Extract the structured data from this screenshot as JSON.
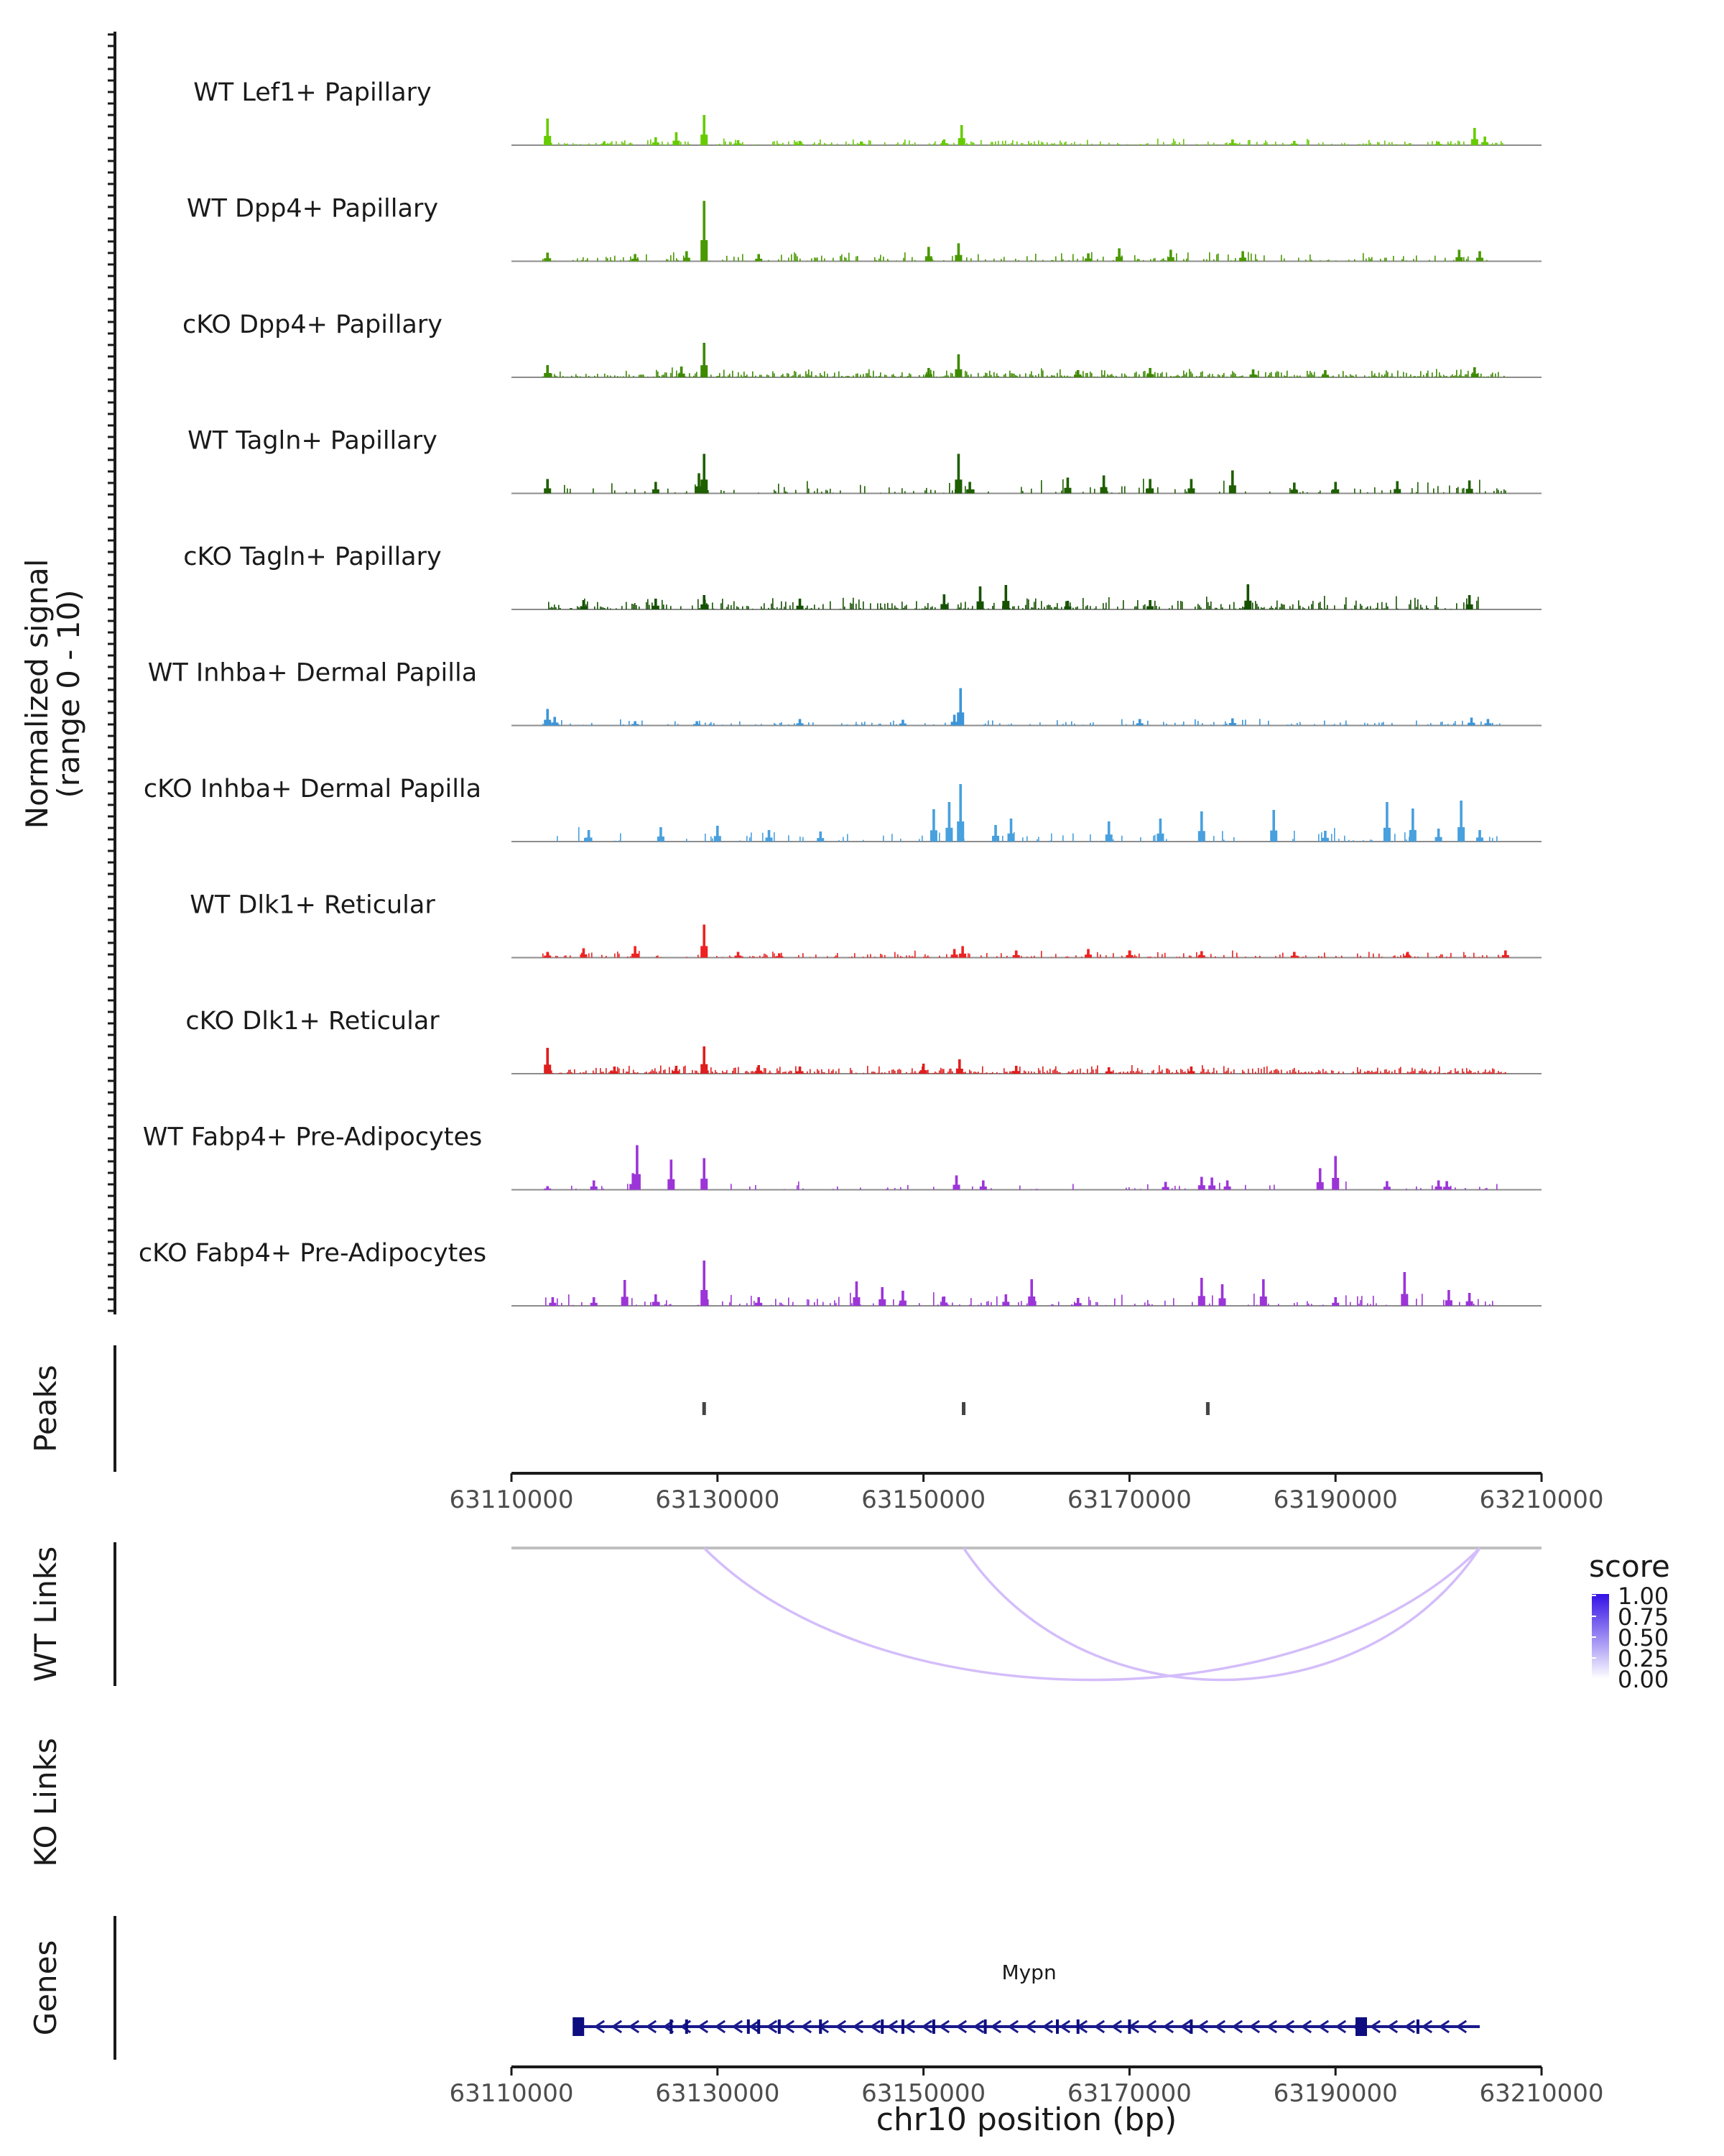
{
  "chart_data": {
    "type": "area",
    "title": "",
    "xlabel": "chr10 position (bp)",
    "xlim": [
      63110000,
      63210000
    ],
    "x_ticks": [
      63110000,
      63130000,
      63150000,
      63170000,
      63190000,
      63210000
    ],
    "ylabel": "Normalized signal\n(range 0 - 10)",
    "ylim": [
      0,
      10
    ],
    "series": [
      {
        "name": "WT Lef1+ Papillary",
        "color": "#66cc00",
        "peaks": [
          [
            63113500,
            3.7
          ],
          [
            63128700,
            4.2
          ],
          [
            63126000,
            1.8
          ],
          [
            63124000,
            1.1
          ],
          [
            63153700,
            2.8
          ],
          [
            63152000,
            0.8
          ],
          [
            63144000,
            0.5
          ],
          [
            63138000,
            0.6
          ],
          [
            63180000,
            0.8
          ],
          [
            63186000,
            0.6
          ],
          [
            63200000,
            0.5
          ],
          [
            63203500,
            2.4
          ],
          [
            63204500,
            1.2
          ],
          [
            63119000,
            0.5
          ],
          [
            63132000,
            0.7
          ]
        ],
        "noise": 0.45,
        "density": 0.55,
        "range": [
          63113000,
          63206500
        ],
        "seed": 11
      },
      {
        "name": "WT Dpp4+ Papillary",
        "color": "#4a9900",
        "peaks": [
          [
            63128700,
            8.4
          ],
          [
            63153400,
            2.5
          ],
          [
            63150500,
            2.0
          ],
          [
            63127000,
            1.4
          ],
          [
            63169000,
            1.8
          ],
          [
            63174000,
            1.6
          ],
          [
            63181000,
            1.4
          ],
          [
            63202000,
            1.6
          ],
          [
            63204000,
            1.4
          ],
          [
            63113500,
            1.2
          ],
          [
            63122000,
            1.0
          ],
          [
            63134000,
            1.0
          ],
          [
            63166000,
            1.1
          ]
        ],
        "noise": 0.7,
        "density": 0.35,
        "range": [
          63113000,
          63205000
        ],
        "seed": 23
      },
      {
        "name": "cKO Dpp4+ Papillary",
        "color": "#3d8a00",
        "peaks": [
          [
            63128700,
            4.8
          ],
          [
            63153400,
            3.2
          ],
          [
            63113500,
            1.7
          ],
          [
            63126500,
            1.5
          ],
          [
            63150500,
            1.3
          ],
          [
            63165000,
            1.0
          ],
          [
            63172000,
            1.3
          ],
          [
            63182000,
            1.1
          ],
          [
            63203500,
            1.4
          ],
          [
            63189000,
            1.0
          ]
        ],
        "noise": 0.65,
        "density": 0.75,
        "range": [
          63113000,
          63206500
        ],
        "seed": 37
      },
      {
        "name": "WT Tagln+ Papillary",
        "color": "#1f5f00",
        "peaks": [
          [
            63128700,
            5.5
          ],
          [
            63153400,
            5.5
          ],
          [
            63128200,
            2.8
          ],
          [
            63164000,
            2.2
          ],
          [
            63167500,
            2.5
          ],
          [
            63172000,
            2.0
          ],
          [
            63180000,
            3.2
          ],
          [
            63176000,
            2.0
          ],
          [
            63190000,
            1.6
          ],
          [
            63196000,
            1.7
          ],
          [
            63203000,
            1.8
          ],
          [
            63113500,
            2.0
          ],
          [
            63124000,
            1.6
          ],
          [
            63154500,
            1.6
          ],
          [
            63186000,
            1.5
          ]
        ],
        "noise": 1.0,
        "density": 0.22,
        "range": [
          63113000,
          63206500
        ],
        "seed": 41
      },
      {
        "name": "cKO Tagln+ Papillary",
        "color": "#155200",
        "peaks": [
          [
            63155500,
            3.2
          ],
          [
            63158000,
            3.4
          ],
          [
            63181500,
            3.5
          ],
          [
            63128700,
            2.0
          ],
          [
            63152000,
            2.1
          ],
          [
            63124000,
            1.5
          ],
          [
            63117000,
            1.3
          ],
          [
            63138000,
            1.5
          ],
          [
            63203000,
            2.0
          ],
          [
            63164000,
            1.2
          ],
          [
            63172000,
            1.3
          ]
        ],
        "noise": 0.9,
        "density": 0.5,
        "range": [
          63113000,
          63204000
        ],
        "seed": 53
      },
      {
        "name": "WT Inhba+ Dermal Papilla",
        "color": "#3d95d8",
        "peaks": [
          [
            63153600,
            5.2
          ],
          [
            63113500,
            2.3
          ],
          [
            63114200,
            1.2
          ],
          [
            63153000,
            1.5
          ],
          [
            63138000,
            0.9
          ],
          [
            63148000,
            0.8
          ],
          [
            63171000,
            0.9
          ],
          [
            63180000,
            1.0
          ],
          [
            63203200,
            1.1
          ],
          [
            63204800,
            0.9
          ],
          [
            63122000,
            0.6
          ],
          [
            63128000,
            0.6
          ]
        ],
        "noise": 0.45,
        "density": 0.3,
        "range": [
          63113000,
          63206000
        ],
        "seed": 67
      },
      {
        "name": "cKO Inhba+ Dermal Papilla",
        "color": "#48a0de",
        "peaks": [
          [
            63153600,
            8.0
          ],
          [
            63152500,
            5.5
          ],
          [
            63151000,
            4.5
          ],
          [
            63202200,
            5.7
          ],
          [
            63195000,
            5.5
          ],
          [
            63197500,
            4.6
          ],
          [
            63184000,
            4.4
          ],
          [
            63177000,
            4.2
          ],
          [
            63173000,
            3.2
          ],
          [
            63168000,
            2.8
          ],
          [
            63158500,
            3.2
          ],
          [
            63157000,
            2.3
          ],
          [
            63124500,
            2.0
          ],
          [
            63117500,
            1.6
          ],
          [
            63130000,
            2.2
          ],
          [
            63135000,
            1.6
          ],
          [
            63140000,
            1.4
          ],
          [
            63200000,
            1.8
          ],
          [
            63204000,
            1.6
          ],
          [
            63189000,
            1.5
          ]
        ],
        "noise": 1.0,
        "density": 0.15,
        "range": [
          63113000,
          63206500
        ],
        "seed": 71
      },
      {
        "name": "WT Dlk1+ Reticular",
        "color": "#ee2222",
        "peaks": [
          [
            63128700,
            4.6
          ],
          [
            63122000,
            1.6
          ],
          [
            63117000,
            1.3
          ],
          [
            63113500,
            0.8
          ],
          [
            63153800,
            1.6
          ],
          [
            63153000,
            1.2
          ],
          [
            63159000,
            1.0
          ],
          [
            63166000,
            1.2
          ],
          [
            63170000,
            1.0
          ],
          [
            63177000,
            0.9
          ],
          [
            63186000,
            0.8
          ],
          [
            63197000,
            0.8
          ],
          [
            63206500,
            1.0
          ],
          [
            63132000,
            0.8
          ],
          [
            63136000,
            0.6
          ]
        ],
        "noise": 0.5,
        "density": 0.45,
        "range": [
          63113000,
          63206700
        ],
        "seed": 83
      },
      {
        "name": "cKO Dlk1+ Reticular",
        "color": "#e01e1e",
        "peaks": [
          [
            63128700,
            3.8
          ],
          [
            63113500,
            3.6
          ],
          [
            63153500,
            2.0
          ],
          [
            63150000,
            1.4
          ],
          [
            63120000,
            1.0
          ],
          [
            63126000,
            1.1
          ],
          [
            63134000,
            1.2
          ],
          [
            63138000,
            1.0
          ],
          [
            63159000,
            1.1
          ],
          [
            63168000,
            0.9
          ],
          [
            63176000,
            1.0
          ]
        ],
        "noise": 0.55,
        "density": 0.8,
        "range": [
          63113000,
          63206500
        ],
        "seed": 97
      },
      {
        "name": "WT Fabp4+ Pre-Adipocytes",
        "color": "#9c35d8",
        "peaks": [
          [
            63122200,
            6.2
          ],
          [
            63128700,
            4.4
          ],
          [
            63125500,
            4.2
          ],
          [
            63121800,
            2.3
          ],
          [
            63188500,
            3.0
          ],
          [
            63190000,
            4.7
          ],
          [
            63153200,
            2.0
          ],
          [
            63155800,
            1.3
          ],
          [
            63177000,
            1.8
          ],
          [
            63178000,
            1.7
          ],
          [
            63179500,
            1.3
          ],
          [
            63173500,
            1.1
          ],
          [
            63195000,
            1.2
          ],
          [
            63200000,
            1.3
          ],
          [
            63200800,
            1.2
          ],
          [
            63118000,
            1.3
          ],
          [
            63113500,
            0.5
          ]
        ],
        "noise": 0.6,
        "density": 0.12,
        "range": [
          63113000,
          63206000
        ],
        "seed": 101
      },
      {
        "name": "cKO Fabp4+ Pre-Adipocytes",
        "color": "#9c35d8",
        "peaks": [
          [
            63128700,
            6.3
          ],
          [
            63121000,
            3.6
          ],
          [
            63160500,
            3.7
          ],
          [
            63196700,
            4.7
          ],
          [
            63177000,
            3.9
          ],
          [
            63183000,
            3.7
          ],
          [
            63179000,
            3.0
          ],
          [
            63146000,
            2.6
          ],
          [
            63143500,
            3.4
          ],
          [
            63148000,
            2.1
          ],
          [
            63124000,
            1.6
          ],
          [
            63134000,
            1.2
          ],
          [
            63152000,
            1.3
          ],
          [
            63158000,
            1.6
          ],
          [
            63165000,
            1.1
          ],
          [
            63190000,
            1.2
          ],
          [
            63201000,
            2.2
          ],
          [
            63203000,
            1.8
          ],
          [
            63114000,
            1.2
          ],
          [
            63118000,
            1.2
          ]
        ],
        "noise": 0.9,
        "density": 0.25,
        "range": [
          63113000,
          63206000
        ],
        "seed": 113
      }
    ],
    "peaks_track": {
      "label": "Peaks",
      "positions": [
        63128700,
        63153900,
        63177600
      ]
    },
    "links_tracks": [
      {
        "label": "WT Links",
        "links": [
          {
            "start": 63128700,
            "end": 63204000,
            "score": 0.25
          },
          {
            "start": 63153900,
            "end": 63204000,
            "score": 0.25
          }
        ]
      },
      {
        "label": "KO Links",
        "links": []
      }
    ],
    "links_legend": {
      "title": "score",
      "ticks": [
        "1.00",
        "0.75",
        "0.50",
        "0.25",
        "0.00"
      ]
    },
    "genes_track": {
      "label": "Genes",
      "gene": "Mypn",
      "start": 63116500,
      "end": 63204000,
      "strand": "-",
      "exons": [
        63116500,
        63125500,
        63127000,
        63133000,
        63134000,
        63136000,
        63140000,
        63146000,
        63148000,
        63151000,
        63156000,
        63163000,
        63165000,
        63170000,
        63176000,
        63192500,
        63198000
      ]
    }
  }
}
